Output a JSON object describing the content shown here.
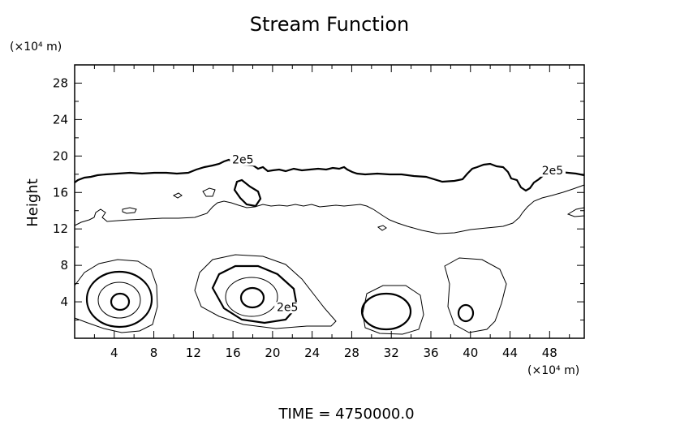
{
  "chart_data": {
    "type": "contour",
    "title": "Stream Function",
    "xlabel": "",
    "ylabel": "Height",
    "x_unit_label": "(×10⁴ m)",
    "y_unit_label": "(×10⁴ m)",
    "xlim": [
      0,
      51.5
    ],
    "ylim": [
      0,
      30
    ],
    "x_ticks": [
      4,
      8,
      12,
      16,
      20,
      24,
      28,
      32,
      36,
      40,
      44,
      48
    ],
    "y_ticks": [
      4,
      8,
      12,
      16,
      20,
      24,
      28
    ],
    "contour_labels": [
      {
        "text": "2e5",
        "x": 17,
        "y": 19.2
      },
      {
        "text": "2e5",
        "x": 48.3,
        "y": 18.0
      },
      {
        "text": "2e5",
        "x": 21.5,
        "y": 3.0
      }
    ],
    "footer": "TIME  =  4750000.0",
    "colors": {
      "line": "#000000",
      "background": "#ffffff"
    }
  }
}
